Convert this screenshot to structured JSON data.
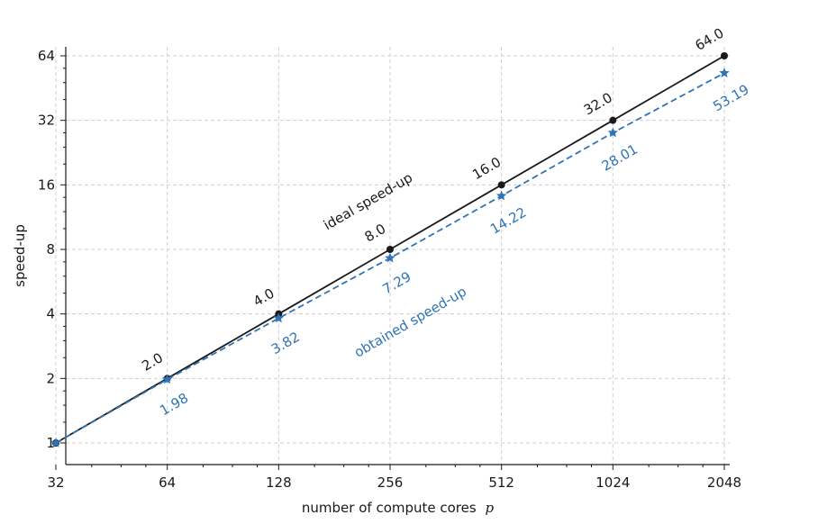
{
  "chart_data": {
    "type": "line",
    "xlabel": "number of compute cores",
    "xlabel_var": "p",
    "ylabel": "speed-up",
    "x_scale": "log2",
    "y_scale": "log2",
    "xlim": [
      32,
      2048
    ],
    "ylim": [
      1,
      64
    ],
    "x": [
      32,
      64,
      128,
      256,
      512,
      1024,
      2048
    ],
    "x_tick_labels": [
      "32",
      "64",
      "128",
      "256",
      "512",
      "1024",
      "2048"
    ],
    "y_ticks": [
      1,
      2,
      4,
      8,
      16,
      32,
      64
    ],
    "y_tick_labels": [
      "1",
      "2",
      "4",
      "8",
      "16",
      "32",
      "64"
    ],
    "grid": true,
    "series": [
      {
        "name": "ideal speed-up",
        "color": "#1a1a1a",
        "marker": "circle",
        "line_style": "solid",
        "values": [
          1,
          2,
          4,
          8,
          16,
          32,
          64
        ],
        "labels": [
          "",
          "2.0",
          "4.0",
          "8.0",
          "16.0",
          "32.0",
          "64.0"
        ]
      },
      {
        "name": "obtained speed-up",
        "color": "#2f74b5",
        "marker": "star",
        "line_style": "dashed",
        "values": [
          1,
          1.98,
          3.82,
          7.29,
          14.22,
          28.01,
          53.19
        ],
        "labels": [
          "",
          "1.98",
          "3.82",
          "7.29",
          "14.22",
          "28.01",
          "53.19"
        ]
      }
    ]
  }
}
